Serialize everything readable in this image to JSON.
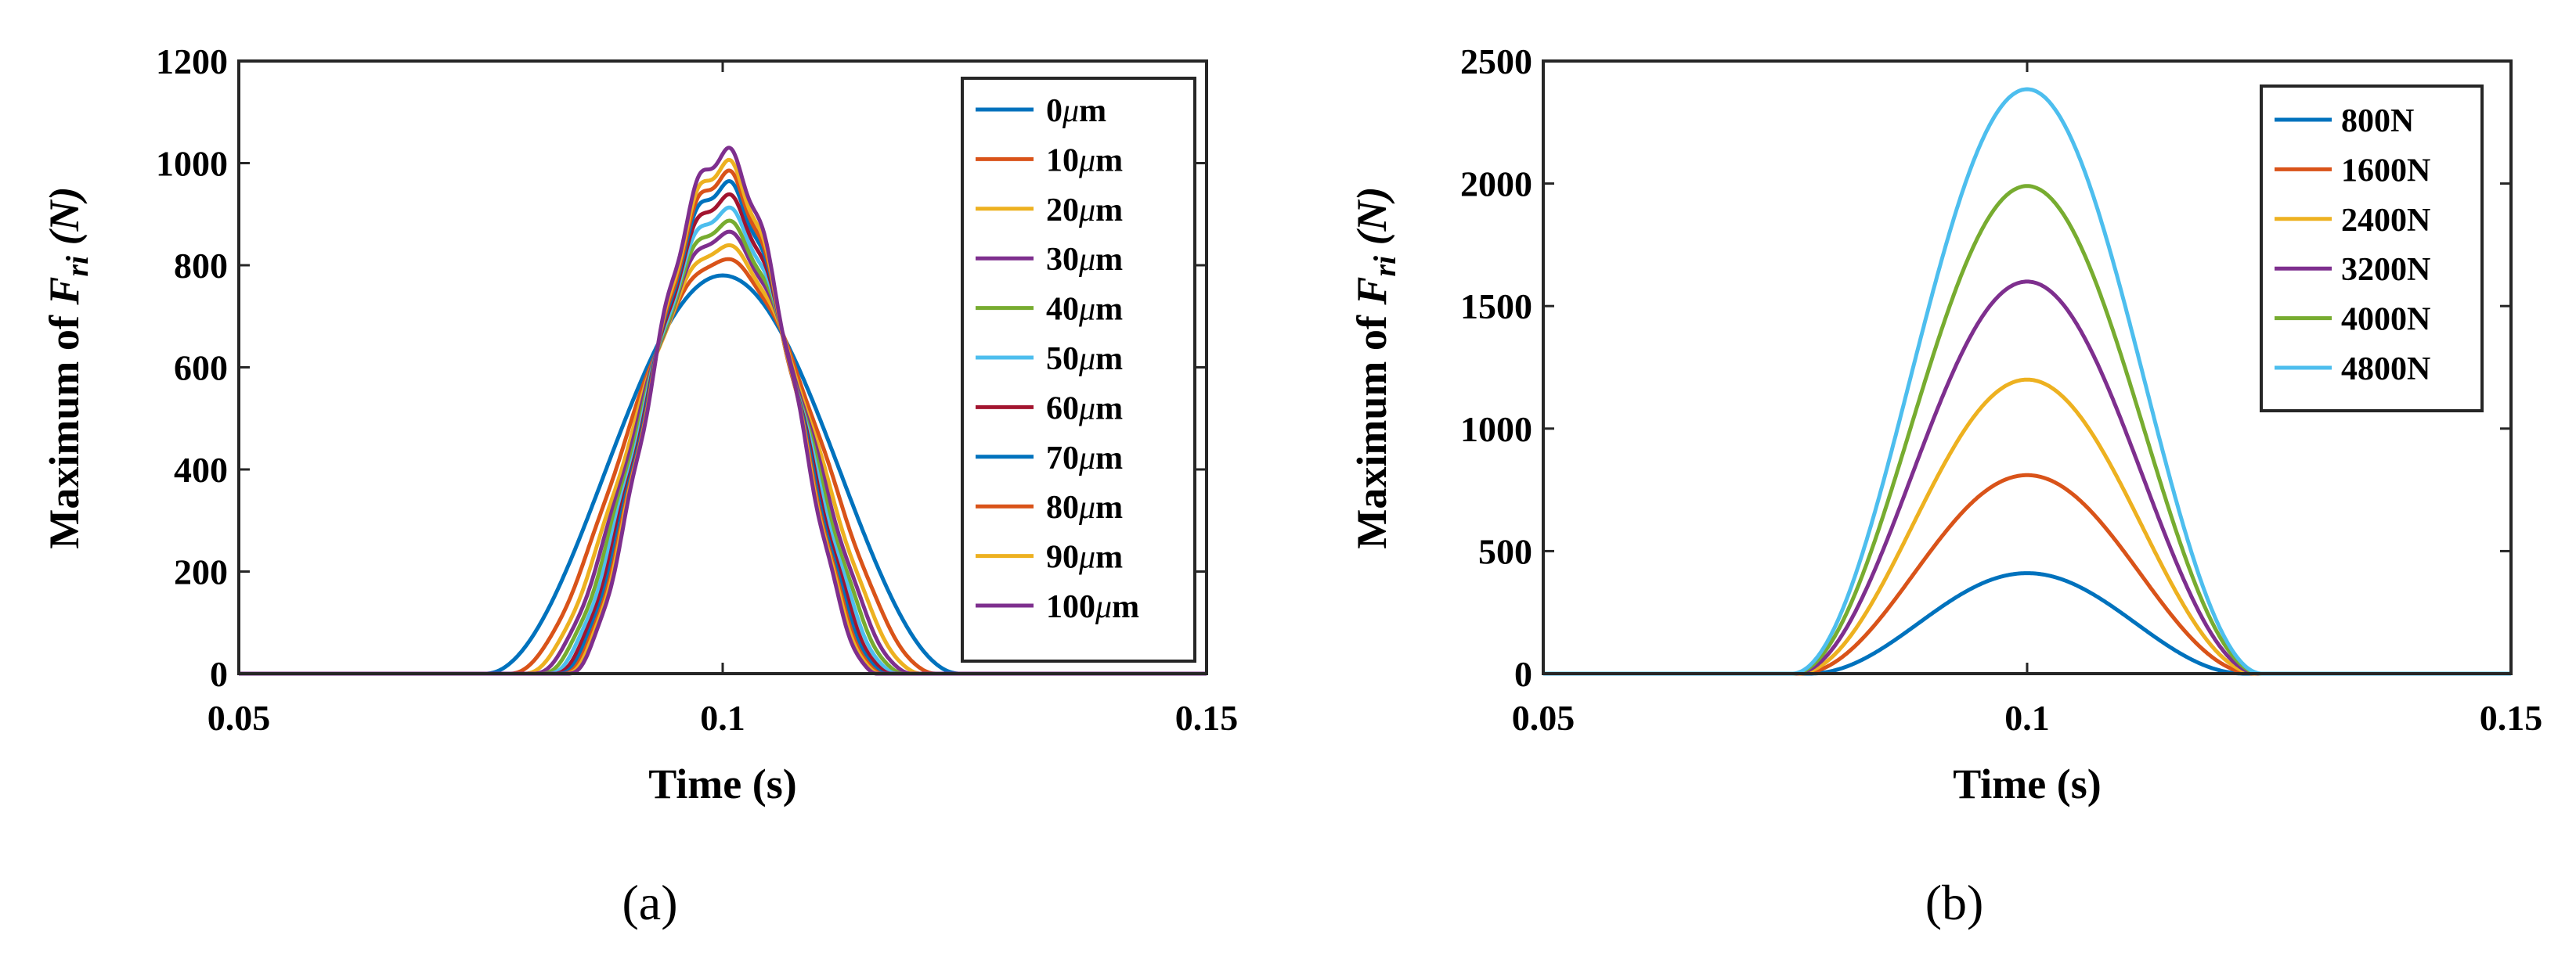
{
  "chart_data": [
    {
      "type": "line",
      "panel_label": "(a)",
      "xlabel": "Time (s)",
      "ylabel_prefix": "Maximum of ",
      "ylabel_symbol": "F",
      "ylabel_subscript": "ri",
      "ylabel_unit": " (N)",
      "xlim": [
        0.05,
        0.15
      ],
      "ylim": [
        0,
        1200
      ],
      "xticks": [
        "0.05",
        "0.1",
        "0.15"
      ],
      "xtick_values": [
        0.05,
        0.1,
        0.15
      ],
      "yticks": [
        "0",
        "200",
        "400",
        "600",
        "800",
        "1000",
        "1200"
      ],
      "ytick_values": [
        0,
        200,
        400,
        600,
        800,
        1000,
        1200
      ],
      "legend_location": "top-right",
      "series": [
        {
          "name": "0μm",
          "num": "0",
          "unit": "μm",
          "color": "#0072BD",
          "peak": 780,
          "start": 0.0755,
          "ripple": 0
        },
        {
          "name": "10μm",
          "num": "10",
          "unit": "μm",
          "color": "#D95319",
          "peak": 810,
          "start": 0.078,
          "ripple": 5
        },
        {
          "name": "20μm",
          "num": "20",
          "unit": "μm",
          "color": "#EDB120",
          "peak": 835,
          "start": 0.0795,
          "ripple": 8
        },
        {
          "name": "30μm",
          "num": "30",
          "unit": "μm",
          "color": "#7E2F8E",
          "peak": 860,
          "start": 0.0805,
          "ripple": 10
        },
        {
          "name": "40μm",
          "num": "40",
          "unit": "μm",
          "color": "#77AC30",
          "peak": 880,
          "start": 0.0813,
          "ripple": 12
        },
        {
          "name": "50μm",
          "num": "50",
          "unit": "μm",
          "color": "#4DBEEE",
          "peak": 905,
          "start": 0.082,
          "ripple": 13
        },
        {
          "name": "60μm",
          "num": "60",
          "unit": "μm",
          "color": "#A2142F",
          "peak": 930,
          "start": 0.0826,
          "ripple": 14
        },
        {
          "name": "70μm",
          "num": "70",
          "unit": "μm",
          "color": "#0072BD",
          "peak": 955,
          "start": 0.0831,
          "ripple": 15
        },
        {
          "name": "80μm",
          "num": "80",
          "unit": "μm",
          "color": "#D95319",
          "peak": 975,
          "start": 0.0835,
          "ripple": 16
        },
        {
          "name": "90μm",
          "num": "90",
          "unit": "μm",
          "color": "#EDB120",
          "peak": 995,
          "start": 0.0838,
          "ripple": 17
        },
        {
          "name": "100μm",
          "num": "100",
          "unit": "μm",
          "color": "#7E2F8E",
          "peak": 1018,
          "start": 0.0841,
          "ripple": 18
        }
      ]
    },
    {
      "type": "line",
      "panel_label": "(b)",
      "xlabel": "Time (s)",
      "ylabel_prefix": "Maximum of ",
      "ylabel_symbol": "F",
      "ylabel_subscript": "ri",
      "ylabel_unit": " (N)",
      "xlim": [
        0.05,
        0.15
      ],
      "ylim": [
        0,
        2500
      ],
      "xticks": [
        "0.05",
        "0.1",
        "0.15"
      ],
      "xtick_values": [
        0.05,
        0.1,
        0.15
      ],
      "yticks": [
        "0",
        "500",
        "1000",
        "1500",
        "2000",
        "2500"
      ],
      "ytick_values": [
        0,
        500,
        1000,
        1500,
        2000,
        2500
      ],
      "legend_location": "top-right",
      "series": [
        {
          "name": "800N",
          "color": "#0072BD",
          "peak": 410,
          "start": 0.0775
        },
        {
          "name": "1600N",
          "color": "#D95319",
          "peak": 810,
          "start": 0.0765
        },
        {
          "name": "2400N",
          "color": "#EDB120",
          "peak": 1200,
          "start": 0.0762
        },
        {
          "name": "3200N",
          "color": "#7E2F8E",
          "peak": 1600,
          "start": 0.076
        },
        {
          "name": "4000N",
          "color": "#77AC30",
          "peak": 1990,
          "start": 0.0758
        },
        {
          "name": "4800N",
          "color": "#4DBEEE",
          "peak": 2385,
          "start": 0.0757
        }
      ]
    }
  ]
}
